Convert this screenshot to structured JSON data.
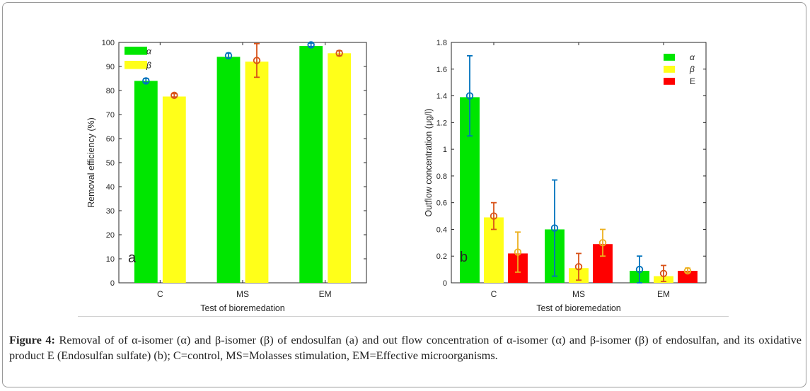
{
  "chart_data": [
    {
      "type": "bar",
      "panel_label": "a",
      "categories": [
        "C",
        "MS",
        "EM"
      ],
      "xlabel": "Test of bioremedation",
      "ylabel": "Removal efficiency (%)",
      "ylim": [
        0,
        100
      ],
      "yticks": [
        0,
        10,
        20,
        30,
        40,
        50,
        60,
        70,
        80,
        90,
        100
      ],
      "legend_position": "top-left",
      "series": [
        {
          "name": "α",
          "color": "#00e600",
          "values": [
            84,
            94,
            98.5
          ],
          "err_center": [
            84,
            94.5,
            99
          ],
          "err_low": [
            83.2,
            93.5,
            98.3
          ],
          "err_high": [
            85,
            95.5,
            99.7
          ],
          "err_color": "#0072bd"
        },
        {
          "name": "β",
          "color": "#ffff19",
          "values": [
            77.5,
            92,
            95.5
          ],
          "err_center": [
            78,
            92.5,
            95.5
          ],
          "err_low": [
            77.3,
            85.5,
            94.5
          ],
          "err_high": [
            78.7,
            99.5,
            96.5
          ],
          "err_color": "#d95319"
        }
      ]
    },
    {
      "type": "bar",
      "panel_label": "b",
      "categories": [
        "C",
        "MS",
        "EM"
      ],
      "xlabel": "Test of bioremedation",
      "ylabel": "Outflow concentration (μg/l)",
      "ylim": [
        0,
        1.8
      ],
      "yticks": [
        0,
        0.2,
        0.4,
        0.6,
        0.8,
        1,
        1.2,
        1.4,
        1.6,
        1.8
      ],
      "legend_position": "top-right",
      "series": [
        {
          "name": "α",
          "color": "#00e600",
          "values": [
            1.39,
            0.4,
            0.09
          ],
          "err_center": [
            1.4,
            0.41,
            0.1
          ],
          "err_low": [
            1.1,
            0.05,
            0
          ],
          "err_high": [
            1.7,
            0.77,
            0.2
          ],
          "err_color": "#0072bd"
        },
        {
          "name": "β",
          "color": "#ffff19",
          "values": [
            0.49,
            0.11,
            0.05
          ],
          "err_center": [
            0.5,
            0.12,
            0.07
          ],
          "err_low": [
            0.4,
            0.02,
            0.01
          ],
          "err_high": [
            0.6,
            0.22,
            0.13
          ],
          "err_color": "#d95319"
        },
        {
          "name": "E",
          "color": "#ff0000",
          "values": [
            0.22,
            0.29,
            0.09
          ],
          "err_center": [
            0.23,
            0.3,
            0.09
          ],
          "err_low": [
            0.08,
            0.2,
            0.08
          ],
          "err_high": [
            0.38,
            0.4,
            0.11
          ],
          "err_color": "#edb120"
        }
      ]
    }
  ],
  "caption": {
    "label": "Figure 4:",
    "text": " Removal of of α-isomer (α) and β-isomer (β) of endosulfan (a) and out flow concentration of α-isomer (α) and β-isomer (β) of endosulfan, and its oxidative product E (Endosulfan sulfate) (b); C=control, MS=Molasses stimulation, EM=Effective microorganisms."
  }
}
